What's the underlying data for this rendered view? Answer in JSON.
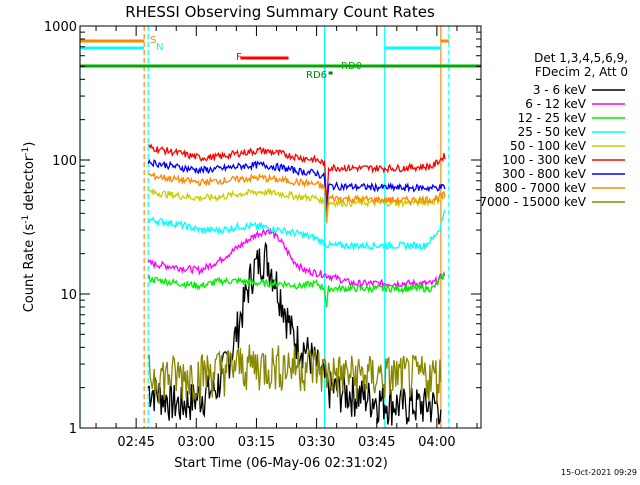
{
  "chart_data": {
    "type": "line",
    "title": "RHESSI Observing Summary Count Rates",
    "xlabel": "Start Time (06-May-06 02:31:02)",
    "ylabel_parts": [
      "Count Rate (s",
      "-1",
      " detector",
      "-1",
      ")"
    ],
    "yscale": "log",
    "ylim": [
      1,
      1000
    ],
    "xlim_minutes": [
      0,
      100
    ],
    "x_ticks": [
      {
        "m": 14,
        "label": "02:45"
      },
      {
        "m": 29,
        "label": "03:00"
      },
      {
        "m": 44,
        "label": "03:15"
      },
      {
        "m": 59,
        "label": "03:30"
      },
      {
        "m": 74,
        "label": "03:45"
      },
      {
        "m": 89,
        "label": "04:00"
      }
    ],
    "y_ticks": [
      {
        "v": 1,
        "label": "1"
      },
      {
        "v": 10,
        "label": "10"
      },
      {
        "v": 100,
        "label": "100"
      },
      {
        "v": 1000,
        "label": "1000"
      }
    ],
    "legend": {
      "header_line1": "Det 1,3,4,5,6,9,",
      "header_line2": "FDecim 2, Att 0",
      "placement": "right"
    },
    "timestamp": "15-Oct-2021 09:29",
    "series": [
      {
        "name": "3 - 6 keV",
        "color": "#000000",
        "points": [
          [
            17,
            2
          ],
          [
            25,
            1.5
          ],
          [
            34,
            2
          ],
          [
            38,
            4
          ],
          [
            41,
            9
          ],
          [
            43,
            15
          ],
          [
            46,
            20
          ],
          [
            48,
            15
          ],
          [
            50,
            10
          ],
          [
            53,
            5
          ],
          [
            56,
            4
          ],
          [
            59,
            3
          ],
          [
            62,
            2
          ],
          [
            80,
            1.5
          ],
          [
            90,
            1.5
          ]
        ]
      },
      {
        "name": "6 - 12 keV",
        "color": "#ff00ff",
        "points": [
          [
            17,
            17
          ],
          [
            30,
            15
          ],
          [
            35,
            18
          ],
          [
            40,
            23
          ],
          [
            44,
            28
          ],
          [
            47,
            30
          ],
          [
            50,
            25
          ],
          [
            53,
            18
          ],
          [
            56,
            15
          ],
          [
            61,
            14
          ],
          [
            68,
            12
          ],
          [
            80,
            12
          ],
          [
            88,
            12
          ],
          [
            91,
            14
          ]
        ]
      },
      {
        "name": "12 - 25 keV",
        "color": "#00ee00",
        "points": [
          [
            17,
            13
          ],
          [
            25,
            12
          ],
          [
            30,
            11.5
          ],
          [
            35,
            12.5
          ],
          [
            40,
            12.5
          ],
          [
            45,
            12
          ],
          [
            50,
            12
          ],
          [
            55,
            11.5
          ],
          [
            59,
            12
          ],
          [
            61,
            11
          ],
          [
            61.5,
            8
          ],
          [
            62,
            11
          ],
          [
            70,
            11
          ],
          [
            80,
            11
          ],
          [
            88,
            11
          ],
          [
            91,
            14
          ]
        ]
      },
      {
        "name": "25 - 50 keV",
        "color": "#00ffff",
        "points": [
          [
            17,
            36
          ],
          [
            25,
            33
          ],
          [
            30,
            30
          ],
          [
            35,
            30
          ],
          [
            40,
            32
          ],
          [
            45,
            32
          ],
          [
            50,
            30
          ],
          [
            55,
            28
          ],
          [
            59,
            26
          ],
          [
            62,
            23
          ],
          [
            70,
            23
          ],
          [
            80,
            23
          ],
          [
            86,
            23
          ],
          [
            88,
            26
          ],
          [
            90,
            32
          ],
          [
            91,
            45
          ]
        ]
      },
      {
        "name": "50 - 100 keV",
        "color": "#cccc00",
        "points": [
          [
            17,
            58
          ],
          [
            25,
            54
          ],
          [
            30,
            52
          ],
          [
            35,
            53
          ],
          [
            40,
            56
          ],
          [
            45,
            58
          ],
          [
            50,
            56
          ],
          [
            55,
            53
          ],
          [
            59,
            52
          ],
          [
            61,
            48
          ],
          [
            61.5,
            36
          ],
          [
            62,
            48
          ],
          [
            70,
            48
          ],
          [
            80,
            48
          ],
          [
            88,
            49
          ],
          [
            91,
            53
          ]
        ]
      },
      {
        "name": "100 - 300 keV",
        "color": "#ff0000",
        "points": [
          [
            17,
            125
          ],
          [
            25,
            112
          ],
          [
            30,
            104
          ],
          [
            35,
            106
          ],
          [
            40,
            113
          ],
          [
            45,
            118
          ],
          [
            50,
            112
          ],
          [
            55,
            104
          ],
          [
            59,
            100
          ],
          [
            61,
            94
          ],
          [
            61.5,
            45
          ],
          [
            62,
            88
          ],
          [
            70,
            87
          ],
          [
            80,
            87
          ],
          [
            88,
            90
          ],
          [
            91,
            108
          ]
        ]
      },
      {
        "name": "300 - 800 keV",
        "color": "#0000ff",
        "points": [
          [
            17,
            97
          ],
          [
            25,
            88
          ],
          [
            30,
            84
          ],
          [
            35,
            86
          ],
          [
            40,
            90
          ],
          [
            45,
            92
          ],
          [
            50,
            88
          ],
          [
            55,
            82
          ],
          [
            59,
            80
          ],
          [
            61,
            74
          ],
          [
            61.5,
            40
          ],
          [
            62,
            64
          ],
          [
            70,
            63
          ],
          [
            80,
            62
          ],
          [
            88,
            62
          ],
          [
            91,
            63
          ]
        ]
      },
      {
        "name": "800 - 7000 keV",
        "color": "#ff8800",
        "points": [
          [
            17,
            77
          ],
          [
            25,
            71
          ],
          [
            30,
            68
          ],
          [
            35,
            70
          ],
          [
            40,
            72
          ],
          [
            45,
            74
          ],
          [
            50,
            71
          ],
          [
            55,
            68
          ],
          [
            59,
            66
          ],
          [
            61,
            62
          ],
          [
            61.5,
            35
          ],
          [
            62,
            52
          ],
          [
            70,
            51
          ],
          [
            80,
            50
          ],
          [
            88,
            51
          ],
          [
            91,
            55
          ]
        ]
      },
      {
        "name": "7000 - 15000 keV",
        "color": "#888800",
        "points": [
          [
            17,
            2.5
          ],
          [
            25,
            2.5
          ],
          [
            30,
            2.6
          ],
          [
            40,
            3
          ],
          [
            50,
            3
          ],
          [
            58,
            3
          ],
          [
            62,
            2.6
          ],
          [
            70,
            2.5
          ],
          [
            80,
            2.5
          ],
          [
            90,
            2.5
          ]
        ]
      }
    ],
    "state_flags": [
      {
        "label": "S",
        "color": "#ff8800",
        "segments": [
          [
            0,
            16
          ],
          [
            90,
            92
          ]
        ]
      },
      {
        "label": "N",
        "color": "#00ffff",
        "segments": [
          [
            0,
            16
          ],
          [
            76,
            90
          ]
        ]
      },
      {
        "label": "F",
        "color": "#ff0000",
        "segments": [
          [
            40,
            52
          ]
        ]
      },
      {
        "label": "RD0",
        "color": "#00aa00",
        "segments": [
          [
            0,
            100
          ]
        ]
      },
      {
        "label": "RD6",
        "color": "#008800",
        "segments": [
          [
            62,
            63
          ]
        ]
      }
    ],
    "vertical_markers": [
      {
        "m": 0,
        "color": "#00ffff",
        "dashed": false
      },
      {
        "m": 16,
        "color": "#ff8800",
        "dashed": true
      },
      {
        "m": 17,
        "color": "#00ffff",
        "dashed": true
      },
      {
        "m": 61,
        "color": "#00ffff",
        "dashed": false
      },
      {
        "m": 76,
        "color": "#00ffff",
        "dashed": false
      },
      {
        "m": 90,
        "color": "#ff8800",
        "dashed": false
      },
      {
        "m": 92,
        "color": "#00ffff",
        "dashed": true
      }
    ]
  }
}
